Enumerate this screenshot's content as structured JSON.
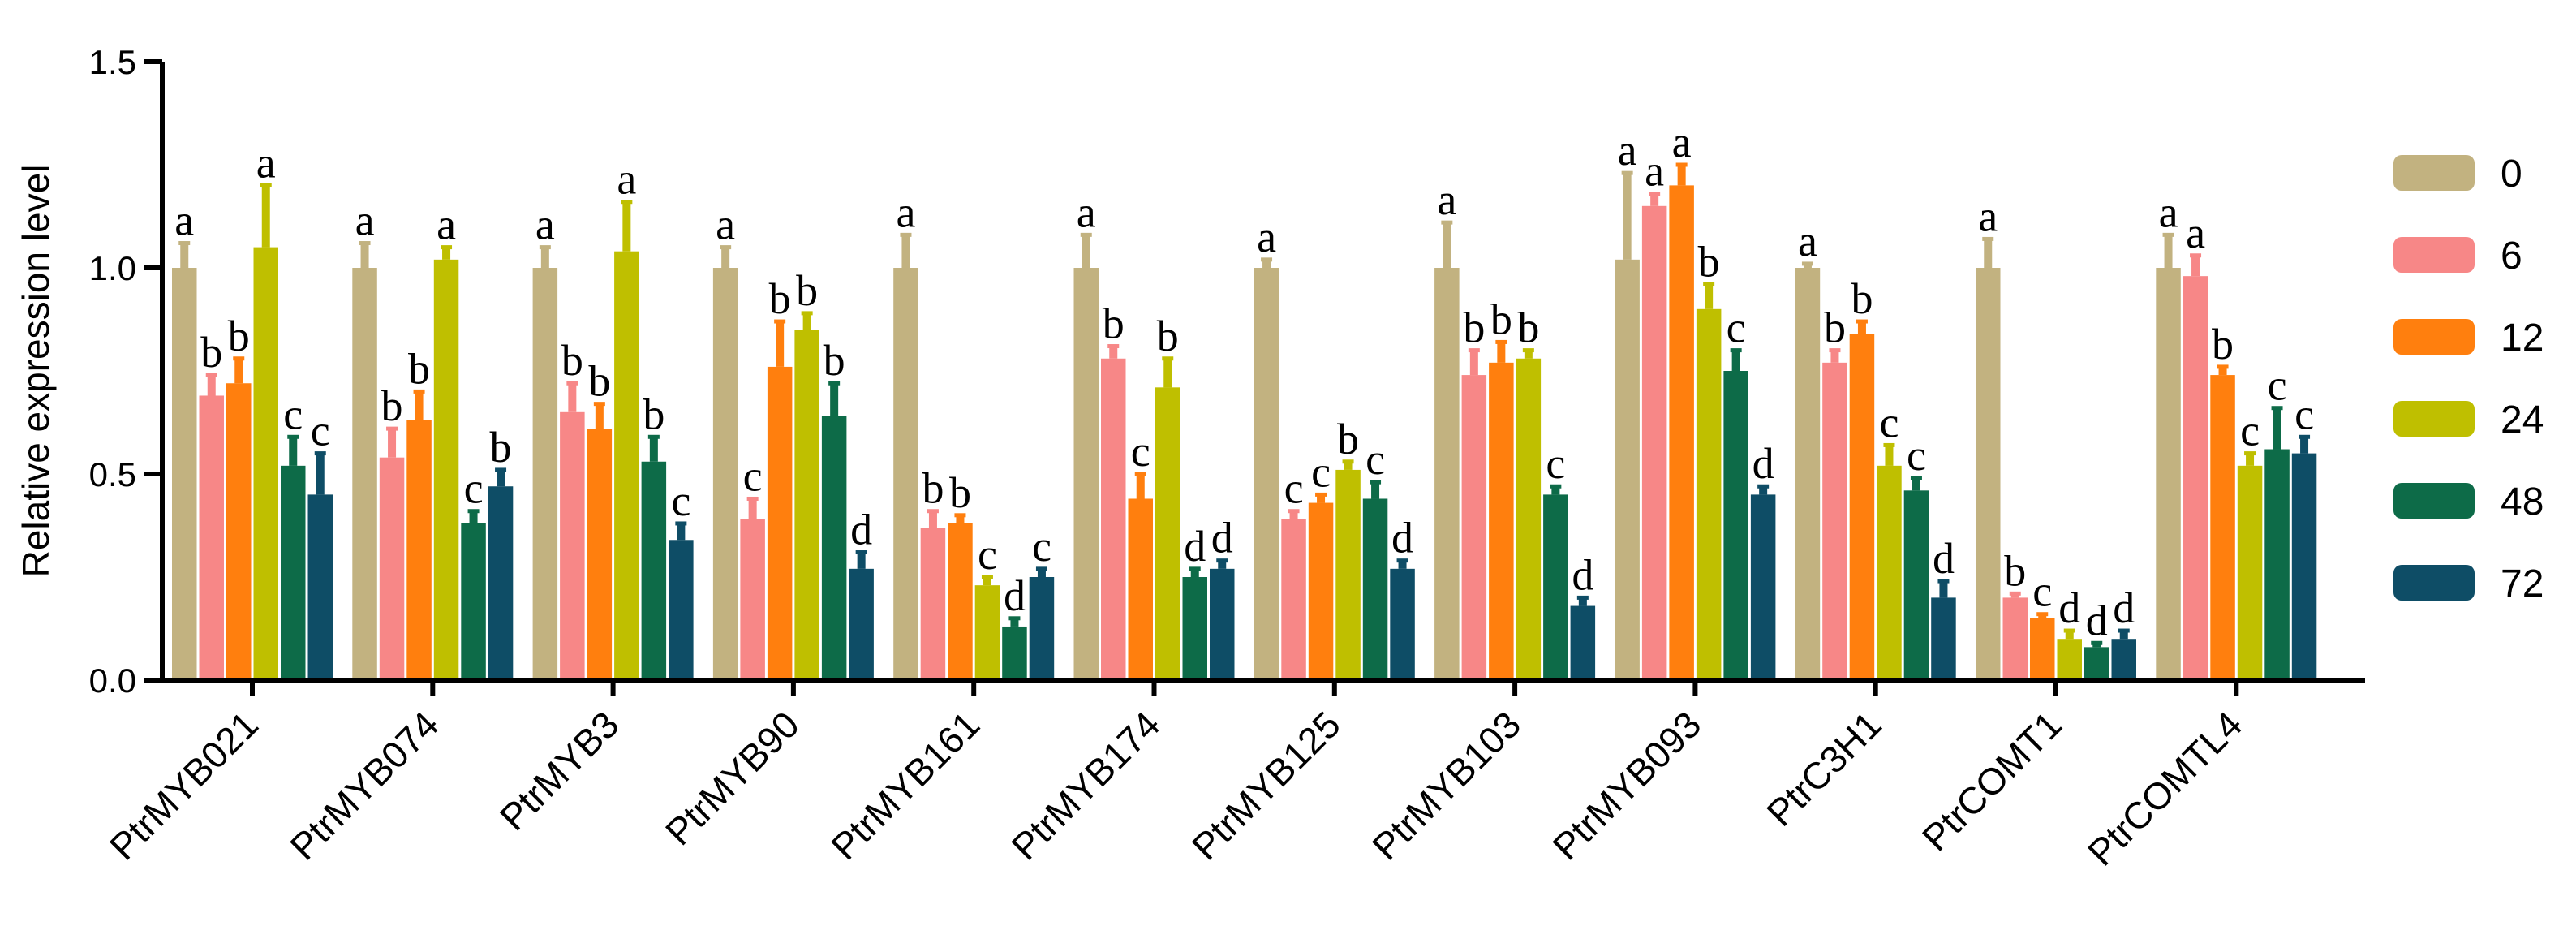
{
  "chart_data": {
    "type": "bar",
    "title": "",
    "xlabel": "",
    "ylabel": "Relative expression level",
    "ylim": [
      0,
      1.5
    ],
    "yticks": [
      "0.0",
      "0.5",
      "1.0",
      "1.5"
    ],
    "legend_position": "right",
    "categories": [
      "PtrMYB021",
      "PtrMYB074",
      "PtrMYB3",
      "PtrMYB90",
      "PtrMYB161",
      "PtrMYB174",
      "PtrMYB125",
      "PtrMYB103",
      "PtrMYB093",
      "PtrC3H1",
      "PtrCOMT1",
      "PtrCOMTL4"
    ],
    "series": [
      {
        "name": "0",
        "color": "#c2b280",
        "values": [
          1.0,
          1.0,
          1.0,
          1.0,
          1.0,
          1.0,
          1.0,
          1.0,
          1.02,
          1.0,
          1.0,
          1.0
        ],
        "errors": [
          0.06,
          0.06,
          0.05,
          0.05,
          0.08,
          0.08,
          0.02,
          0.11,
          0.21,
          0.01,
          0.07,
          0.08
        ],
        "letters": [
          "a",
          "a",
          "a",
          "a",
          "a",
          "a",
          "a",
          "a",
          "a",
          "a",
          "a",
          "a"
        ]
      },
      {
        "name": "6",
        "color": "#f78787",
        "values": [
          0.69,
          0.54,
          0.65,
          0.39,
          0.37,
          0.78,
          0.39,
          0.74,
          1.15,
          0.77,
          0.2,
          0.98
        ],
        "errors": [
          0.05,
          0.07,
          0.07,
          0.05,
          0.04,
          0.03,
          0.02,
          0.06,
          0.03,
          0.03,
          0.01,
          0.05
        ],
        "letters": [
          "b",
          "b",
          "b",
          "c",
          "b",
          "b",
          "c",
          "b",
          "a",
          "b",
          "b",
          "a"
        ]
      },
      {
        "name": "12",
        "color": "#ff7f0e",
        "values": [
          0.72,
          0.63,
          0.61,
          0.76,
          0.38,
          0.44,
          0.43,
          0.77,
          1.2,
          0.84,
          0.15,
          0.74
        ],
        "errors": [
          0.06,
          0.07,
          0.06,
          0.11,
          0.02,
          0.06,
          0.02,
          0.05,
          0.05,
          0.03,
          0.01,
          0.02
        ],
        "letters": [
          "b",
          "b",
          "b",
          "b",
          "b",
          "c",
          "c",
          "b",
          "a",
          "b",
          "c",
          "b"
        ]
      },
      {
        "name": "24",
        "color": "#bfbf00",
        "values": [
          1.05,
          1.02,
          1.04,
          0.85,
          0.23,
          0.71,
          0.51,
          0.78,
          0.9,
          0.52,
          0.1,
          0.52
        ],
        "errors": [
          0.15,
          0.03,
          0.12,
          0.04,
          0.02,
          0.07,
          0.02,
          0.02,
          0.06,
          0.05,
          0.02,
          0.03
        ],
        "letters": [
          "a",
          "a",
          "a",
          "b",
          "c",
          "b",
          "b",
          "b",
          "b",
          "c",
          "d",
          "c"
        ]
      },
      {
        "name": "48",
        "color": "#0d6b48",
        "values": [
          0.52,
          0.38,
          0.53,
          0.64,
          0.13,
          0.25,
          0.44,
          0.45,
          0.75,
          0.46,
          0.08,
          0.56
        ],
        "errors": [
          0.07,
          0.03,
          0.06,
          0.08,
          0.02,
          0.02,
          0.04,
          0.02,
          0.05,
          0.03,
          0.01,
          0.1
        ],
        "letters": [
          "c",
          "c",
          "b",
          "b",
          "d",
          "d",
          "c",
          "c",
          "c",
          "c",
          "d",
          "c"
        ]
      },
      {
        "name": "72",
        "color": "#0e4d66",
        "values": [
          0.45,
          0.47,
          0.34,
          0.27,
          0.25,
          0.27,
          0.27,
          0.18,
          0.45,
          0.2,
          0.1,
          0.55
        ],
        "errors": [
          0.1,
          0.04,
          0.04,
          0.04,
          0.02,
          0.02,
          0.02,
          0.02,
          0.02,
          0.04,
          0.02,
          0.04
        ],
        "letters": [
          "c",
          "b",
          "c",
          "d",
          "c",
          "d",
          "d",
          "d",
          "d",
          "d",
          "d",
          "c"
        ]
      }
    ]
  }
}
